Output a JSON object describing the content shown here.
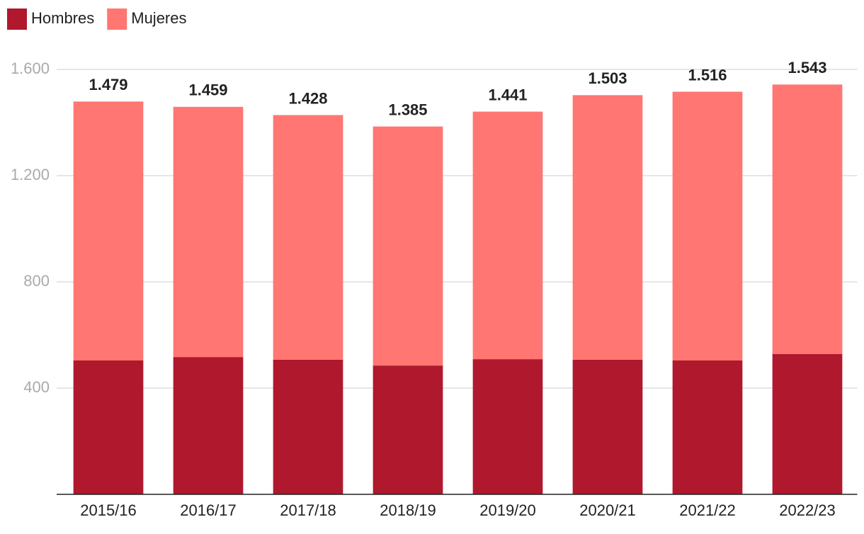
{
  "chart_data": {
    "type": "stacked-bar",
    "categories": [
      "2015/16",
      "2016/17",
      "2017/18",
      "2018/19",
      "2019/20",
      "2020/21",
      "2021/22",
      "2022/23"
    ],
    "series": [
      {
        "name": "Hombres",
        "color": "#b0182e",
        "values": [
          504,
          517,
          507,
          485,
          509,
          507,
          504,
          528
        ]
      },
      {
        "name": "Mujeres",
        "color": "#ff7672",
        "values": [
          975,
          942,
          921,
          900,
          932,
          996,
          1012,
          1015
        ]
      }
    ],
    "totals": {
      "values": [
        1479,
        1459,
        1428,
        1385,
        1441,
        1503,
        1516,
        1543
      ],
      "value_labels": [
        "1.479",
        "1.459",
        "1.428",
        "1.385",
        "1.441",
        "1.503",
        "1.516",
        "1.543"
      ]
    },
    "ylim": [
      0,
      1600
    ],
    "yticks": [
      400,
      800,
      {
        "value": 1200,
        "label": "1.200"
      },
      {
        "value": 1600,
        "label": "1.600"
      }
    ],
    "grid": true
  }
}
